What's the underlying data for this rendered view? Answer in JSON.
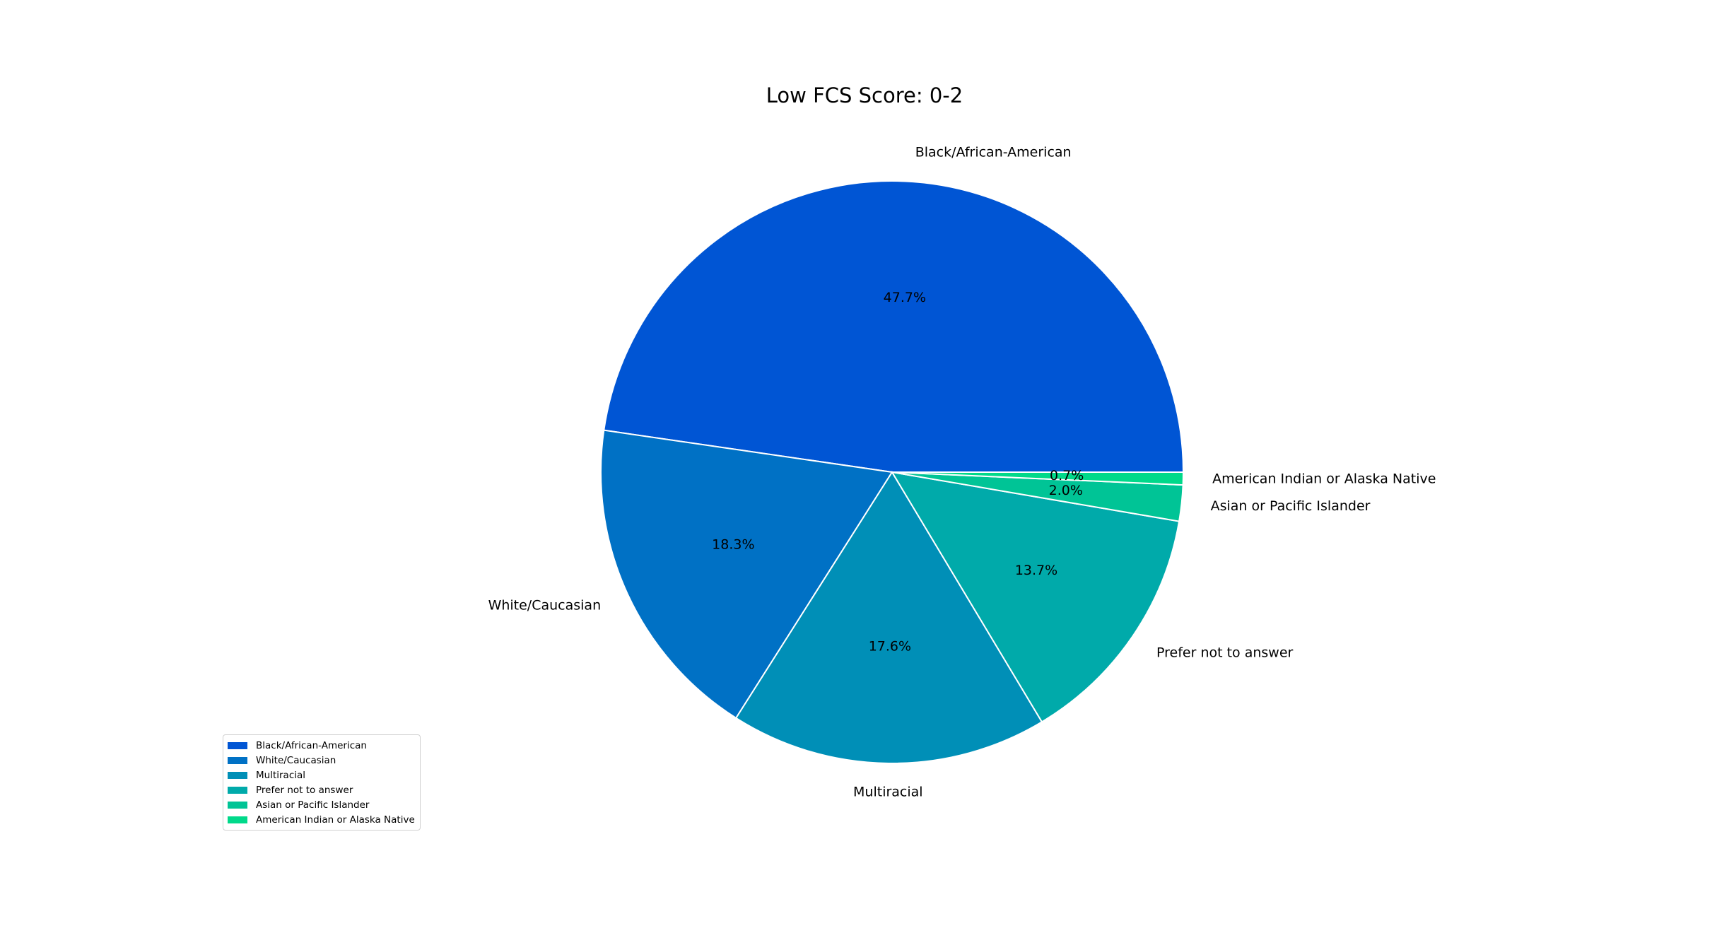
{
  "chart_data": {
    "type": "pie",
    "title": "Low FCS Score: 0-2",
    "categories": [
      "Black/African-American",
      "White/Caucasian",
      "Multiracial",
      "Prefer not to answer",
      "Asian or Pacific Islander",
      "American Indian or Alaska Native"
    ],
    "values": [
      47.7,
      18.3,
      17.6,
      13.7,
      2.0,
      0.7
    ],
    "value_labels": [
      "47.7%",
      "18.3%",
      "17.6%",
      "13.7%",
      "2.0%",
      "0.7%"
    ],
    "colors": [
      "#0055d4",
      "#0071c5",
      "#008fb7",
      "#00aaaa",
      "#00c496",
      "#00d98a"
    ],
    "start_angle_deg": 0,
    "direction": "counterclockwise",
    "legend_position": "lower-left"
  }
}
